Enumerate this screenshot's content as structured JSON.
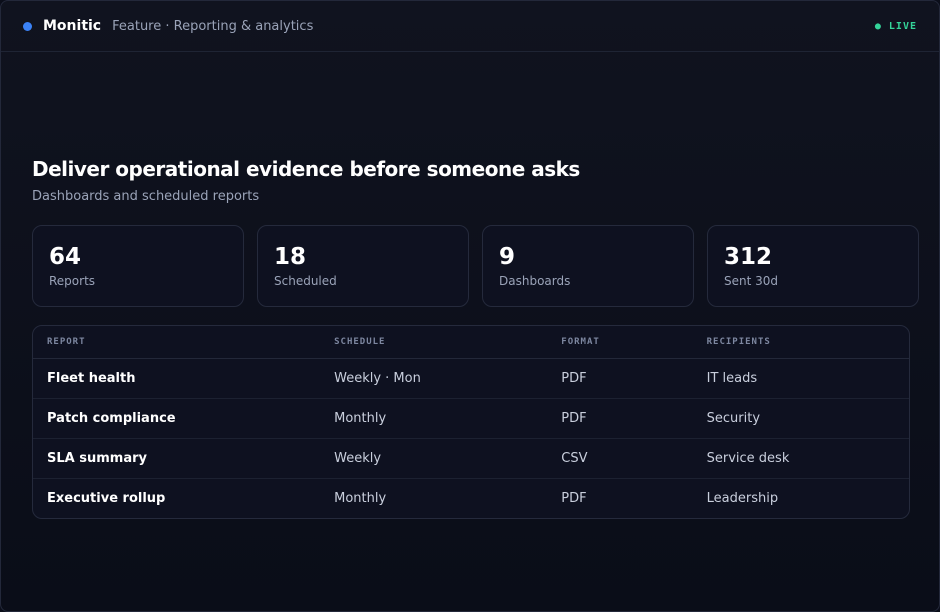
{
  "header": {
    "brand": "Monitic",
    "subtitle": "Feature · Reporting & analytics",
    "status": "● LIVE"
  },
  "hero": {
    "title": "Deliver operational evidence before someone asks",
    "subtitle": "Dashboards and scheduled reports"
  },
  "stats": [
    {
      "value": 64,
      "label": "Reports"
    },
    {
      "value": 18,
      "label": "Scheduled"
    },
    {
      "value": 9,
      "label": "Dashboards"
    },
    {
      "value": 312,
      "label": "Sent 30d"
    }
  ],
  "table": {
    "columns": [
      "REPORT",
      "SCHEDULE",
      "FORMAT",
      "RECIPIENTS"
    ],
    "rows": [
      [
        "Fleet health",
        "Weekly · Mon",
        "PDF",
        "IT leads"
      ],
      [
        "Patch compliance",
        "Monthly",
        "PDF",
        "Security"
      ],
      [
        "SLA summary",
        "Weekly",
        "CSV",
        "Service desk"
      ],
      [
        "Executive rollup",
        "Monthly",
        "PDF",
        "Leadership"
      ]
    ]
  }
}
